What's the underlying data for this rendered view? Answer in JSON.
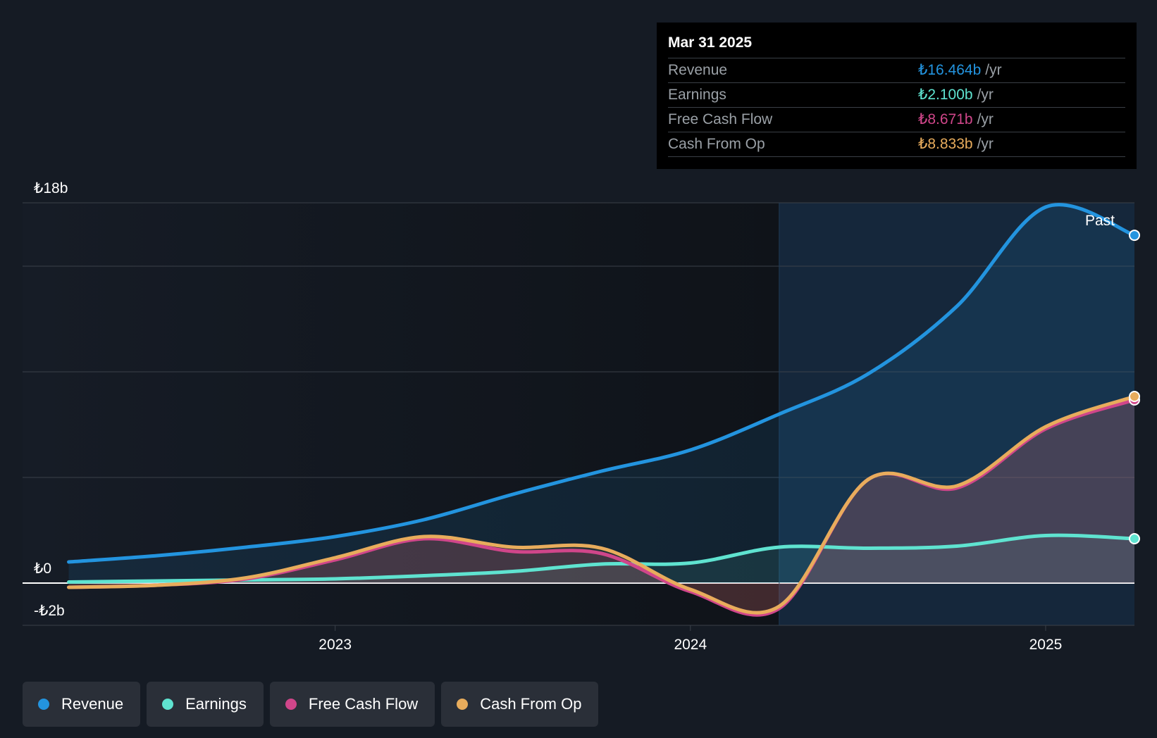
{
  "tooltip": {
    "date": "Mar 31 2025",
    "rows": [
      {
        "label": "Revenue",
        "value": "₺16.464b",
        "unit": "/yr",
        "color": "#2394df"
      },
      {
        "label": "Earnings",
        "value": "₺2.100b",
        "unit": "/yr",
        "color": "#5fe3d0"
      },
      {
        "label": "Free Cash Flow",
        "value": "₺8.671b",
        "unit": "/yr",
        "color": "#d0468a"
      },
      {
        "label": "Cash From Op",
        "value": "₺8.833b",
        "unit": "/yr",
        "color": "#e8ac5c"
      }
    ]
  },
  "past_label": "Past",
  "legend": [
    {
      "label": "Revenue",
      "color": "#2394df"
    },
    {
      "label": "Earnings",
      "color": "#5fe3d0"
    },
    {
      "label": "Free Cash Flow",
      "color": "#d0468a"
    },
    {
      "label": "Cash From Op",
      "color": "#e8ac5c"
    }
  ],
  "chart_data": {
    "type": "area",
    "y_tick_labels": [
      {
        "value": 18,
        "label": "₺18b"
      },
      {
        "value": 0,
        "label": "₺0"
      },
      {
        "value": -2,
        "label": "-₺2b"
      }
    ],
    "x_tick_labels": [
      {
        "value": 2023.0,
        "label": "2023"
      },
      {
        "value": 2024.0,
        "label": "2024"
      },
      {
        "value": 2025.0,
        "label": "2025"
      }
    ],
    "xlim": [
      2022.12,
      2025.25
    ],
    "ylim": [
      -2,
      18
    ],
    "gridlines": [
      18,
      15,
      10,
      5,
      0,
      -2
    ],
    "past_start": 2024.25,
    "series": [
      {
        "name": "Revenue",
        "color": "#2394df",
        "x": [
          2022.25,
          2022.5,
          2022.75,
          2023.0,
          2023.25,
          2023.5,
          2023.75,
          2024.0,
          2024.25,
          2024.5,
          2024.75,
          2025.0,
          2025.25
        ],
        "y": [
          1.0,
          1.3,
          1.7,
          2.2,
          3.0,
          4.2,
          5.3,
          6.3,
          8.0,
          9.9,
          13.1,
          17.8,
          16.464
        ]
      },
      {
        "name": "Earnings",
        "color": "#5fe3d0",
        "x": [
          2022.25,
          2022.5,
          2022.75,
          2023.0,
          2023.25,
          2023.5,
          2023.75,
          2024.0,
          2024.25,
          2024.5,
          2024.75,
          2025.0,
          2025.25
        ],
        "y": [
          0.05,
          0.1,
          0.15,
          0.2,
          0.35,
          0.55,
          0.9,
          0.95,
          1.7,
          1.65,
          1.75,
          2.25,
          2.1
        ],
        "x_override": [
          2022.25,
          2022.5,
          2022.75,
          2023.0,
          2023.25,
          2023.5,
          2023.75,
          2024.0,
          2024.25,
          2024.5,
          2024.75,
          2025.0,
          2025.25
        ]
      },
      {
        "name": "Free Cash Flow",
        "color": "#d0468a",
        "x": [
          2022.25,
          2022.5,
          2022.75,
          2023.0,
          2023.25,
          2023.5,
          2023.75,
          2024.0,
          2024.25,
          2024.5,
          2024.75,
          2025.0,
          2025.25
        ],
        "y": [
          -0.2,
          -0.1,
          0.2,
          1.1,
          2.1,
          1.5,
          1.4,
          -0.4,
          -1.2,
          4.9,
          4.5,
          7.3,
          8.671
        ]
      },
      {
        "name": "Cash From Op",
        "color": "#e8ac5c",
        "x": [
          2022.25,
          2022.5,
          2022.75,
          2023.0,
          2023.25,
          2023.5,
          2023.75,
          2024.0,
          2024.25,
          2024.5,
          2024.75,
          2025.0,
          2025.25
        ],
        "y": [
          -0.2,
          -0.1,
          0.25,
          1.2,
          2.2,
          1.7,
          1.65,
          -0.3,
          -1.1,
          4.9,
          4.6,
          7.4,
          8.833
        ]
      }
    ]
  }
}
